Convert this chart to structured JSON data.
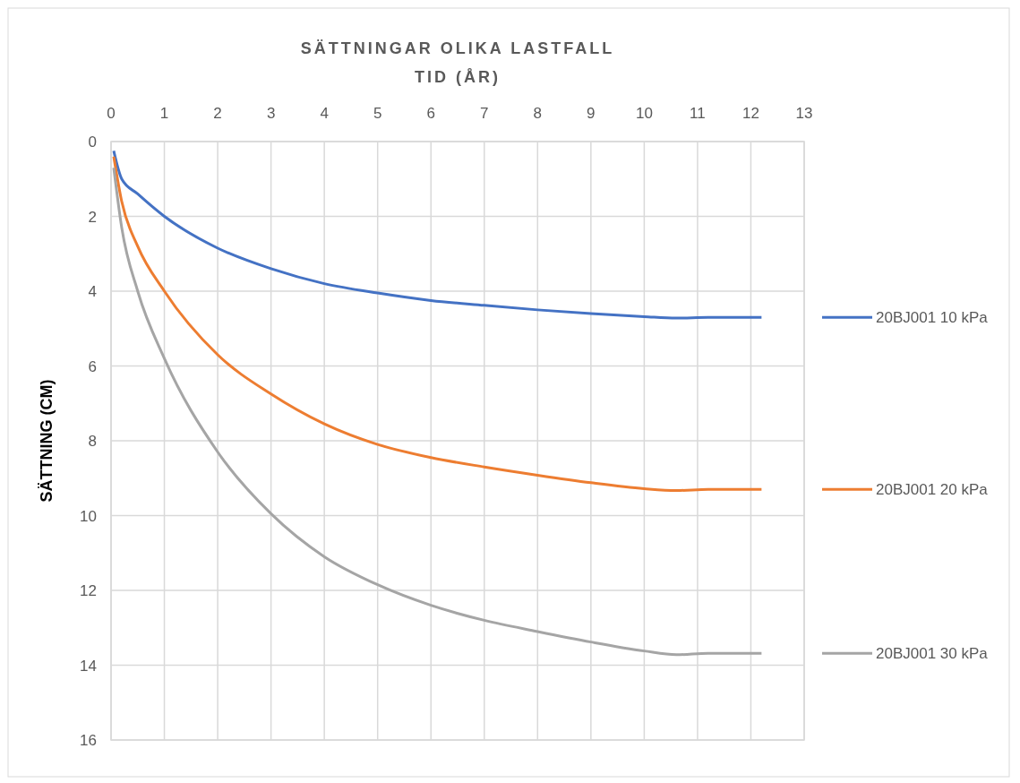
{
  "chart_data": {
    "type": "line",
    "title": "SÄTTNINGAR OLIKA LASTFALL",
    "xlabel": "TID (ÅR)",
    "ylabel": "SÄTTNING (CM)",
    "x": [
      0.05,
      0.2,
      0.5,
      1,
      2,
      3,
      4,
      5,
      6,
      7,
      8,
      9,
      10,
      10.6,
      11.2,
      12.2
    ],
    "series": [
      {
        "name": "20BJ001 10 kPa",
        "color": "#4472c4",
        "values": [
          0.25,
          1.0,
          1.4,
          2.0,
          2.85,
          3.4,
          3.8,
          4.05,
          4.25,
          4.38,
          4.5,
          4.6,
          4.68,
          4.72,
          4.7,
          4.7
        ]
      },
      {
        "name": "20BJ001 20 kPa",
        "color": "#ed7d31",
        "values": [
          0.4,
          1.6,
          2.8,
          4.0,
          5.7,
          6.75,
          7.55,
          8.1,
          8.45,
          8.7,
          8.92,
          9.12,
          9.28,
          9.33,
          9.3,
          9.3
        ]
      },
      {
        "name": "20BJ001 30 kPa",
        "color": "#a5a5a5",
        "values": [
          0.7,
          2.3,
          4.0,
          5.8,
          8.3,
          9.95,
          11.1,
          11.85,
          12.4,
          12.8,
          13.1,
          13.38,
          13.62,
          13.72,
          13.68,
          13.68
        ]
      }
    ],
    "xlim": [
      0,
      13
    ],
    "xticks": [
      0,
      1,
      2,
      3,
      4,
      5,
      6,
      7,
      8,
      9,
      10,
      11,
      12,
      13
    ],
    "ylim": [
      16,
      0
    ],
    "yticks": [
      0,
      2,
      4,
      6,
      8,
      10,
      12,
      14,
      16
    ],
    "grid": true,
    "legend": "right",
    "marker": "none",
    "line_style": "solid"
  }
}
